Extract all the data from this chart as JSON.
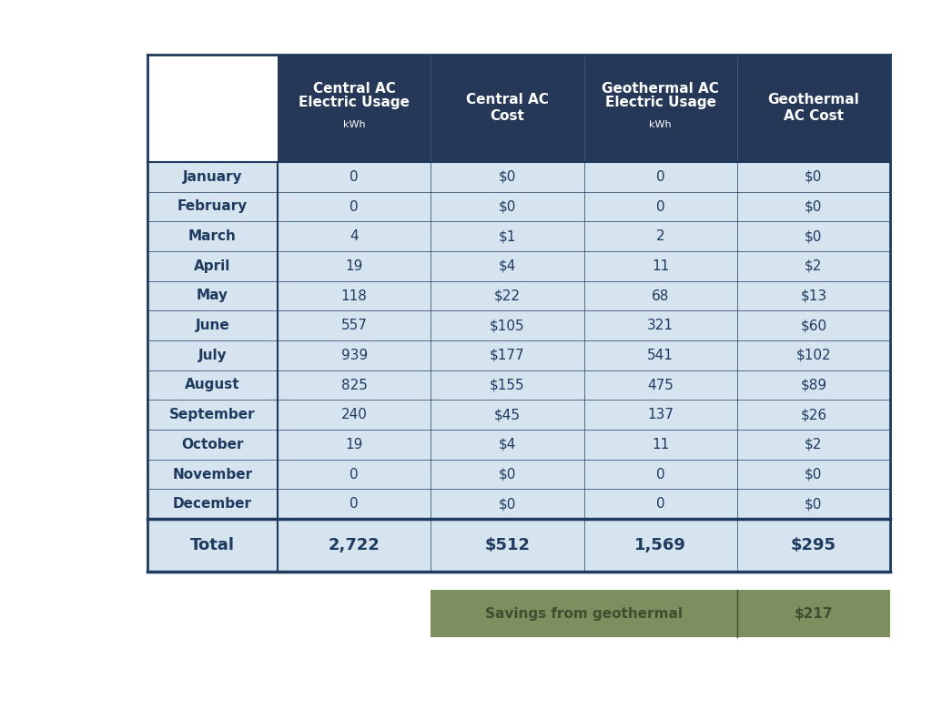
{
  "months": [
    "January",
    "February",
    "March",
    "April",
    "May",
    "June",
    "July",
    "August",
    "September",
    "October",
    "November",
    "December"
  ],
  "central_ac_usage": [
    "0",
    "0",
    "4",
    "19",
    "118",
    "557",
    "939",
    "825",
    "240",
    "19",
    "0",
    "0"
  ],
  "central_ac_cost": [
    "$0",
    "$0",
    "$1",
    "$4",
    "$22",
    "$105",
    "$177",
    "$155",
    "$45",
    "$4",
    "$0",
    "$0"
  ],
  "geo_ac_usage": [
    "0",
    "0",
    "2",
    "11",
    "68",
    "321",
    "541",
    "475",
    "137",
    "11",
    "0",
    "0"
  ],
  "geo_ac_cost": [
    "$0",
    "$0",
    "$0",
    "$2",
    "$13",
    "$60",
    "$102",
    "$89",
    "$26",
    "$2",
    "$0",
    "$0"
  ],
  "total_central_usage": "2,722",
  "total_central_cost": "$512",
  "total_geo_usage": "1,569",
  "total_geo_cost": "$295",
  "savings_label": "Savings from geothermal",
  "savings_value": "$217",
  "header_col1": [
    "Central AC",
    "Electric Usage",
    "kWh"
  ],
  "header_col2": [
    "Central AC",
    "Cost"
  ],
  "header_col3": [
    "Geothermal AC",
    "Electric Usage",
    "kWh"
  ],
  "header_col4": [
    "Geothermal",
    "AC Cost"
  ],
  "header_bg": "#253858",
  "header_text": "#ffffff",
  "row_bg": "#d6e4f0",
  "total_row_bg": "#d6e4f0",
  "total_text_color": "#1e3a5f",
  "month_text_color": "#1e3a5f",
  "cell_text_color": "#1e3a5f",
  "savings_bg": "#7d8f5e",
  "savings_text": "#3d4f2e",
  "border_color": "#1e3a5f",
  "bg_color": "#ffffff",
  "col0_bg": "#ffffff",
  "header_col0_bg": "#ffffff"
}
